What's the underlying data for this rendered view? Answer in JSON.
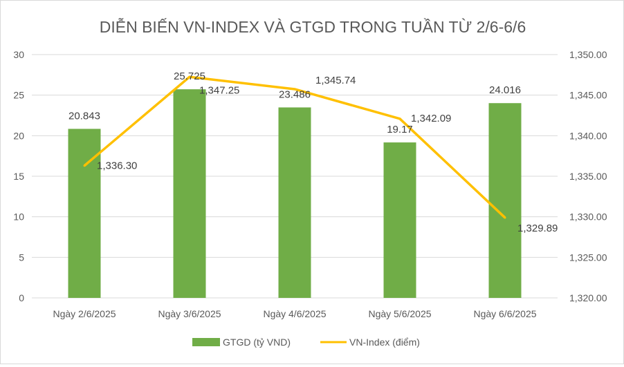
{
  "chart_data": {
    "type": "bar+line",
    "title": "DIỄN BIẾN VN-INDEX VÀ GTGD TRONG TUẦN TỪ 2/6-6/6",
    "categories": [
      "Ngày 2/6/2025",
      "Ngày 3/6/2025",
      "Ngày 4/6/2025",
      "Ngày 5/6/2025",
      "Ngày 6/6/2025"
    ],
    "series": [
      {
        "name": "GTGD (tỷ VND)",
        "type": "bar",
        "axis": "left",
        "color": "#70AD47",
        "values": [
          20.843,
          25.725,
          23.486,
          19.17,
          24.016
        ],
        "labels": [
          "20.843",
          "25.725",
          "23.486",
          "19.17",
          "24.016"
        ]
      },
      {
        "name": "VN-Index (điểm)",
        "type": "line",
        "axis": "right",
        "color": "#FFC000",
        "values": [
          1336.3,
          1347.25,
          1345.74,
          1342.09,
          1329.89
        ],
        "labels": [
          "1,336.30",
          "1,347.25",
          "1,345.74",
          "1,342.09",
          "1,329.89"
        ]
      }
    ],
    "left_axis": {
      "range": [
        0,
        30
      ],
      "ticks": [
        "0",
        "5",
        "10",
        "15",
        "20",
        "25",
        "30"
      ]
    },
    "right_axis": {
      "range": [
        1320,
        1350
      ],
      "ticks": [
        "1,320.00",
        "1,325.00",
        "1,330.00",
        "1,335.00",
        "1,340.00",
        "1,345.00",
        "1,350.00"
      ]
    },
    "grid": true,
    "legend": "bottom"
  }
}
